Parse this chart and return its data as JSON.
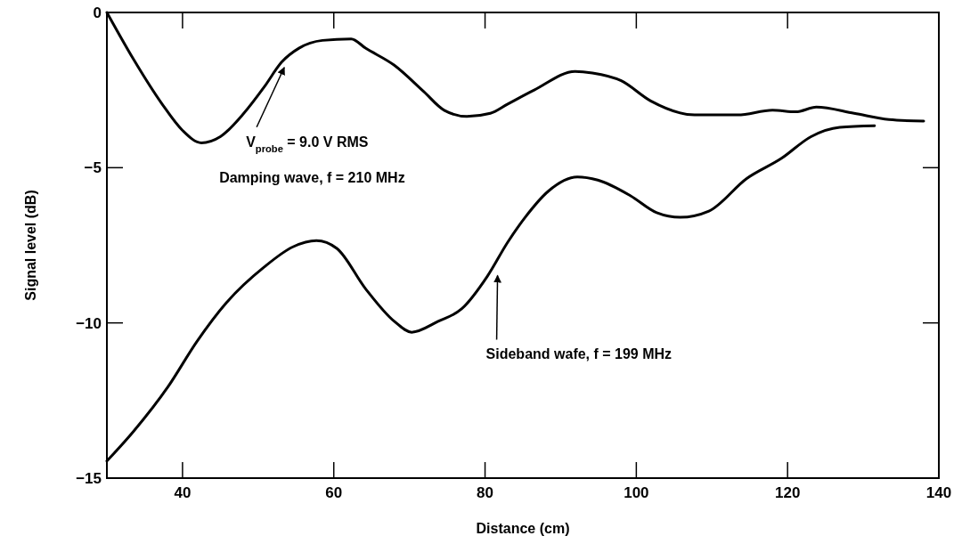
{
  "chart_data": {
    "type": "line",
    "xlabel": "Distance (cm)",
    "ylabel": "Signal level (dB)",
    "xlim": [
      30,
      140
    ],
    "ylim": [
      -15,
      0
    ],
    "xticks": [
      40,
      60,
      80,
      100,
      120,
      140
    ],
    "yticks": [
      -15,
      -10,
      -5,
      0
    ],
    "grid": false,
    "marker": "none",
    "line_style": "solid",
    "series": [
      {
        "color": "#000000",
        "x": [
          30,
          33.5,
          37.3,
          40,
          42.5,
          45,
          48.1,
          50.8,
          53.1,
          55.4,
          58.5,
          62.3,
          64.2,
          68,
          71.9,
          74.6,
          77.6,
          80.7,
          83,
          86.5,
          91.9,
          94.2,
          98,
          101.9,
          107.7,
          113.4,
          118,
          121.1,
          123.8,
          128.8,
          133.4,
          138
        ],
        "values": [
          0,
          -1.5,
          -2.95,
          -3.8,
          -4.2,
          -4,
          -3.25,
          -2.4,
          -1.6,
          -1.15,
          -0.9,
          -0.85,
          -1.15,
          -1.7,
          -2.55,
          -3.15,
          -3.35,
          -3.25,
          -2.95,
          -2.5,
          -1.9,
          -1.95,
          -2.2,
          -2.85,
          -3.3,
          -3.3,
          -3.15,
          -3.2,
          -3.05,
          -3.25,
          -3.45,
          -3.5
        ]
      },
      {
        "color": "#000000",
        "x": [
          30,
          33.5,
          38.1,
          41.9,
          45.8,
          50.8,
          54.6,
          57.7,
          60.4,
          64.2,
          68,
          70.3,
          73.8,
          76.9,
          80.3,
          83,
          85.3,
          88.4,
          92.2,
          94.9,
          99.2,
          102.7,
          105.8,
          109.6,
          114.6,
          119.2,
          123.1,
          126.9,
          131.5
        ],
        "values": [
          -14.45,
          -13.5,
          -12.05,
          -10.6,
          -9.35,
          -8.2,
          -7.55,
          -7.35,
          -7.6,
          -8.9,
          -9.95,
          -10.3,
          -9.95,
          -9.55,
          -8.5,
          -7.4,
          -6.6,
          -5.75,
          -5.3,
          -5.4,
          -5.9,
          -6.45,
          -6.6,
          -6.4,
          -5.35,
          -4.7,
          -4,
          -3.7,
          -3.65
        ]
      }
    ],
    "annotations": [
      {
        "text": "V$_{probe}$ = 9.0 V RMS",
        "x": 53.1,
        "y": -1.6
      },
      "Damping wave, f = 210 MHz",
      {
        "text": "Sideband wafe, f = 199 MHz",
        "x": 81.3,
        "y": -8.3
      }
    ]
  }
}
